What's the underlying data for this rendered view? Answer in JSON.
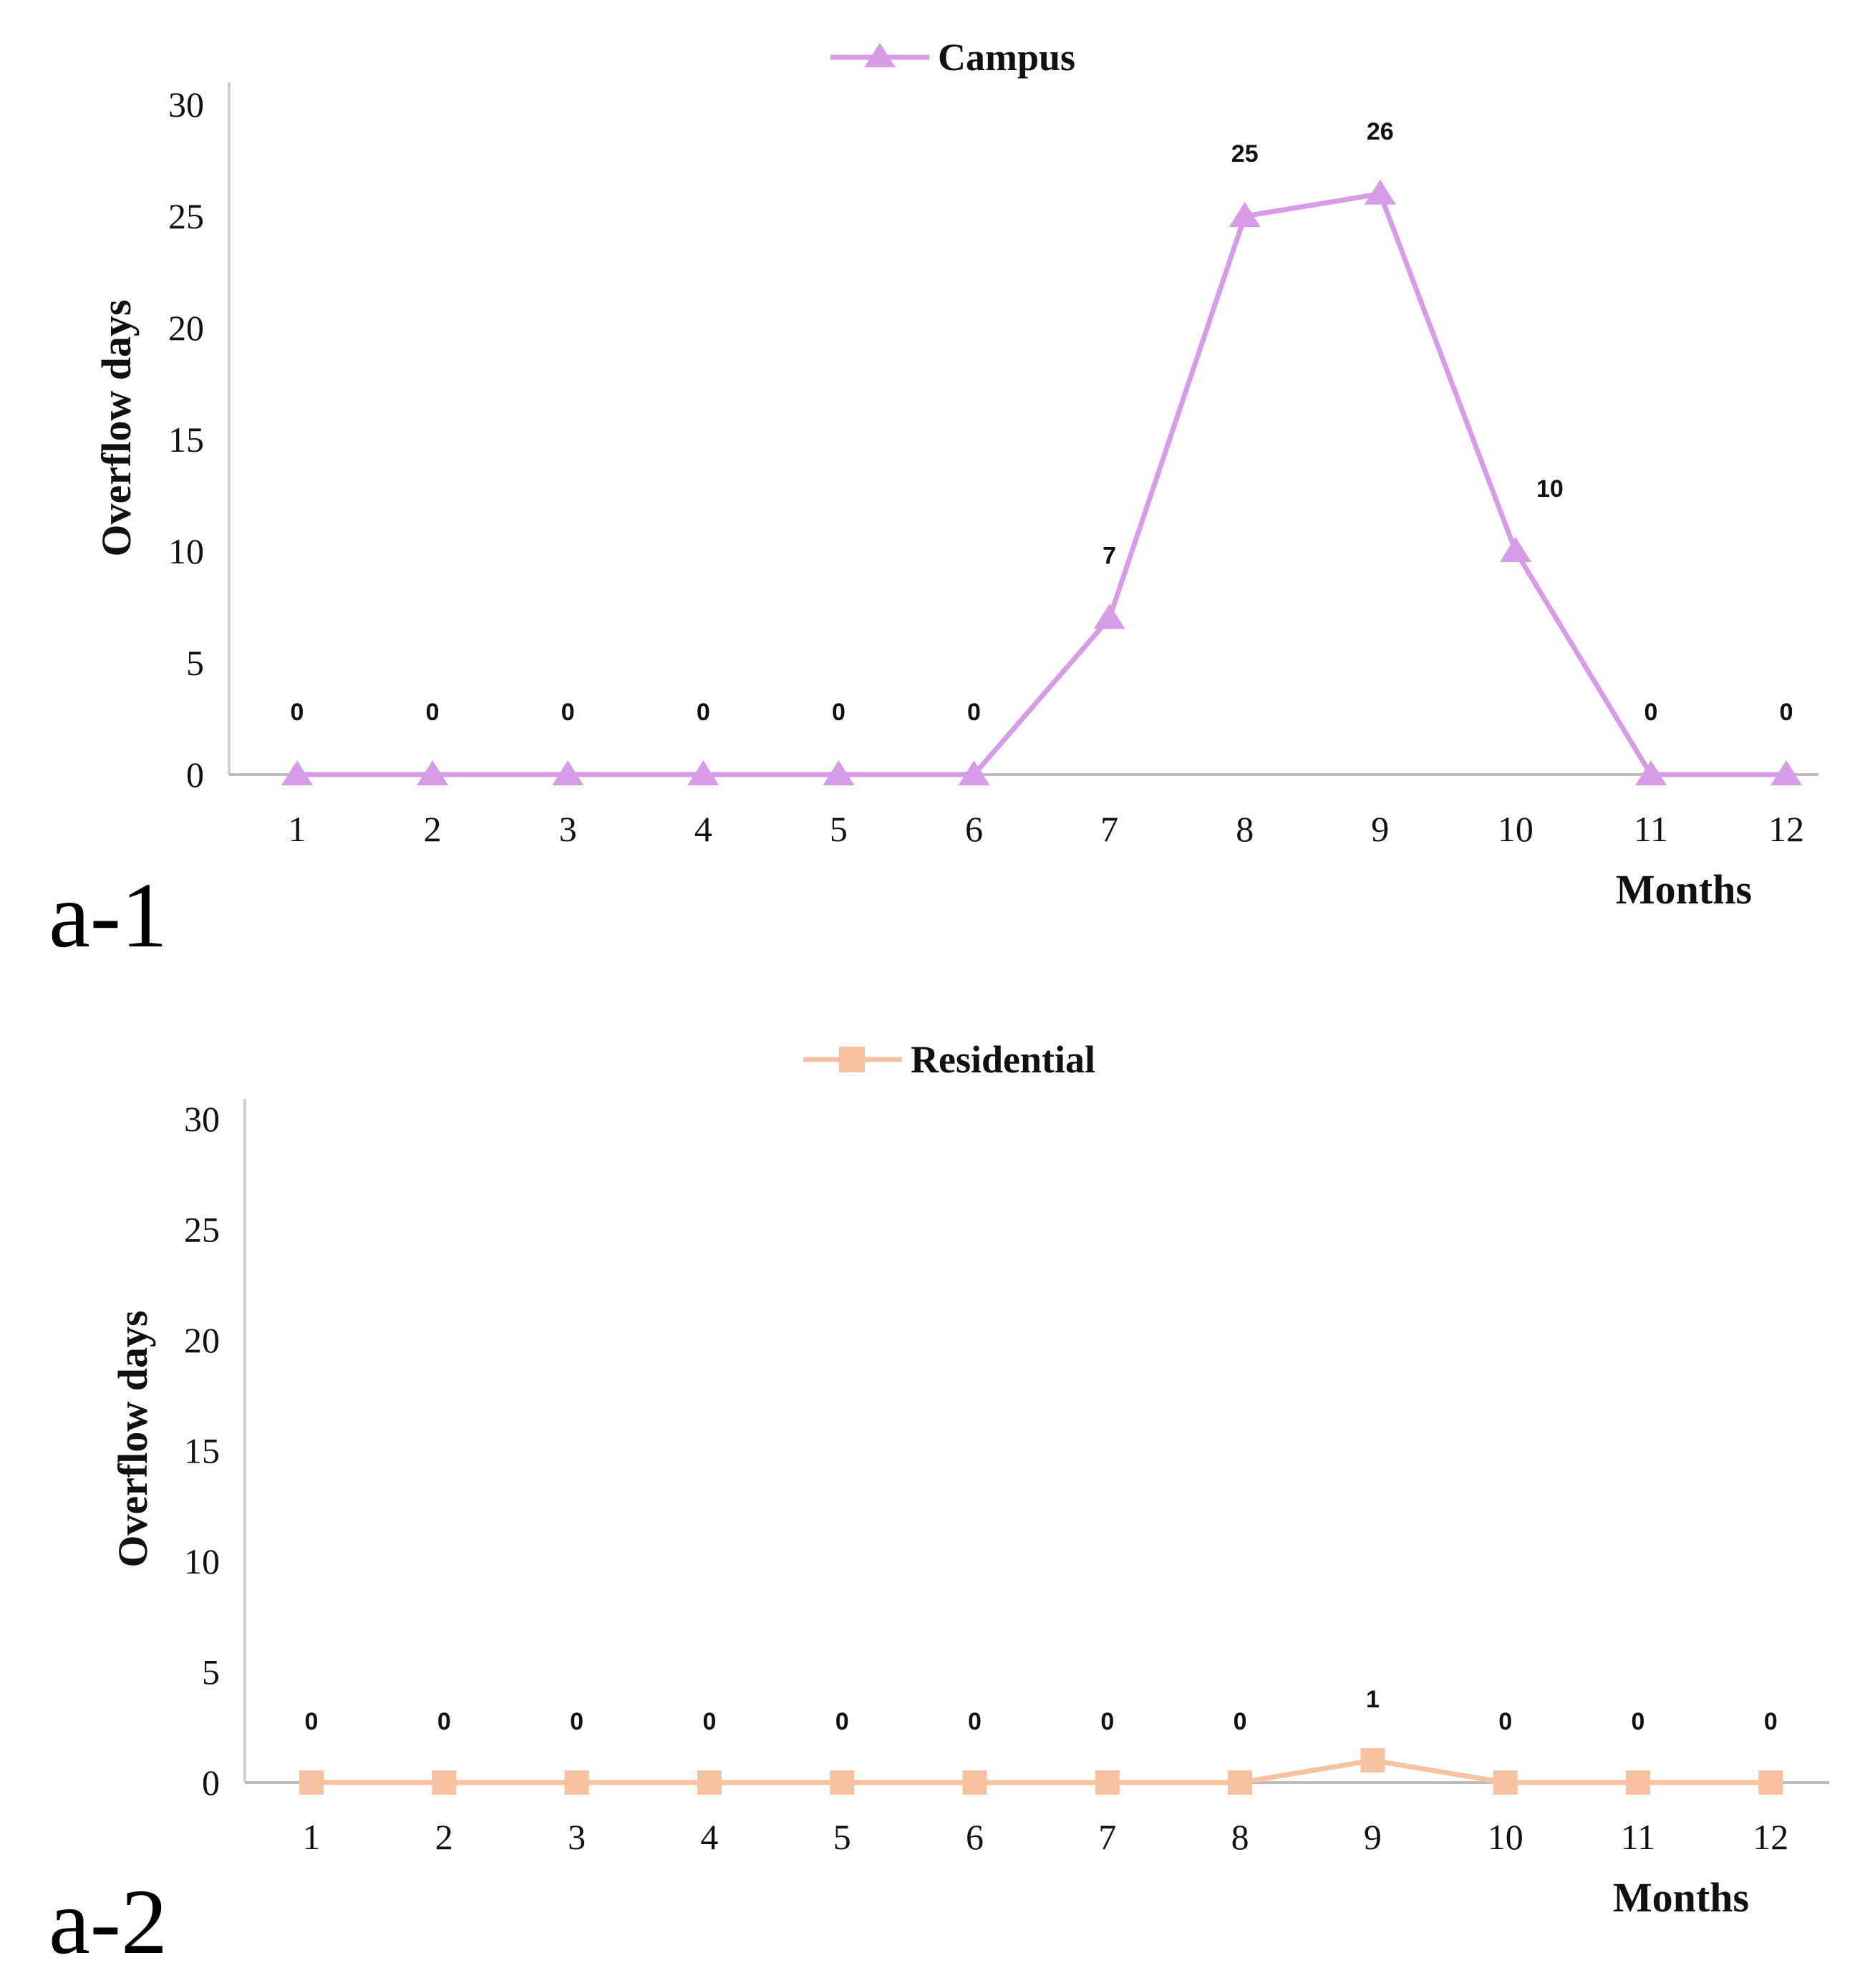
{
  "chart_data": [
    {
      "type": "line",
      "panel_label": "a-1",
      "categories": [
        "1",
        "2",
        "3",
        "4",
        "5",
        "6",
        "7",
        "8",
        "9",
        "10",
        "11",
        "12"
      ],
      "series": [
        {
          "name": "Campus",
          "values": [
            0,
            0,
            0,
            0,
            0,
            0,
            7,
            25,
            26,
            10,
            0,
            0
          ],
          "color": "#d79be8",
          "marker": "triangle"
        }
      ],
      "ylabel": "Overflow days",
      "xlabel": "Months",
      "ylim": [
        0,
        30
      ],
      "yticks": [
        "0",
        "5",
        "10",
        "15",
        "20",
        "25",
        "30"
      ],
      "legend_position": "top-center"
    },
    {
      "type": "line",
      "panel_label": "a-2",
      "categories": [
        "1",
        "2",
        "3",
        "4",
        "5",
        "6",
        "7",
        "8",
        "9",
        "10",
        "11",
        "12"
      ],
      "series": [
        {
          "name": "Residential",
          "values": [
            0,
            0,
            0,
            0,
            0,
            0,
            0,
            0,
            1,
            0,
            0,
            0
          ],
          "color": "#f8c2a0",
          "marker": "square"
        }
      ],
      "ylabel": "Overflow days",
      "xlabel": "Months",
      "ylim": [
        0,
        30
      ],
      "yticks": [
        "0",
        "5",
        "10",
        "15",
        "20",
        "25",
        "30"
      ],
      "legend_position": "top-center"
    }
  ]
}
